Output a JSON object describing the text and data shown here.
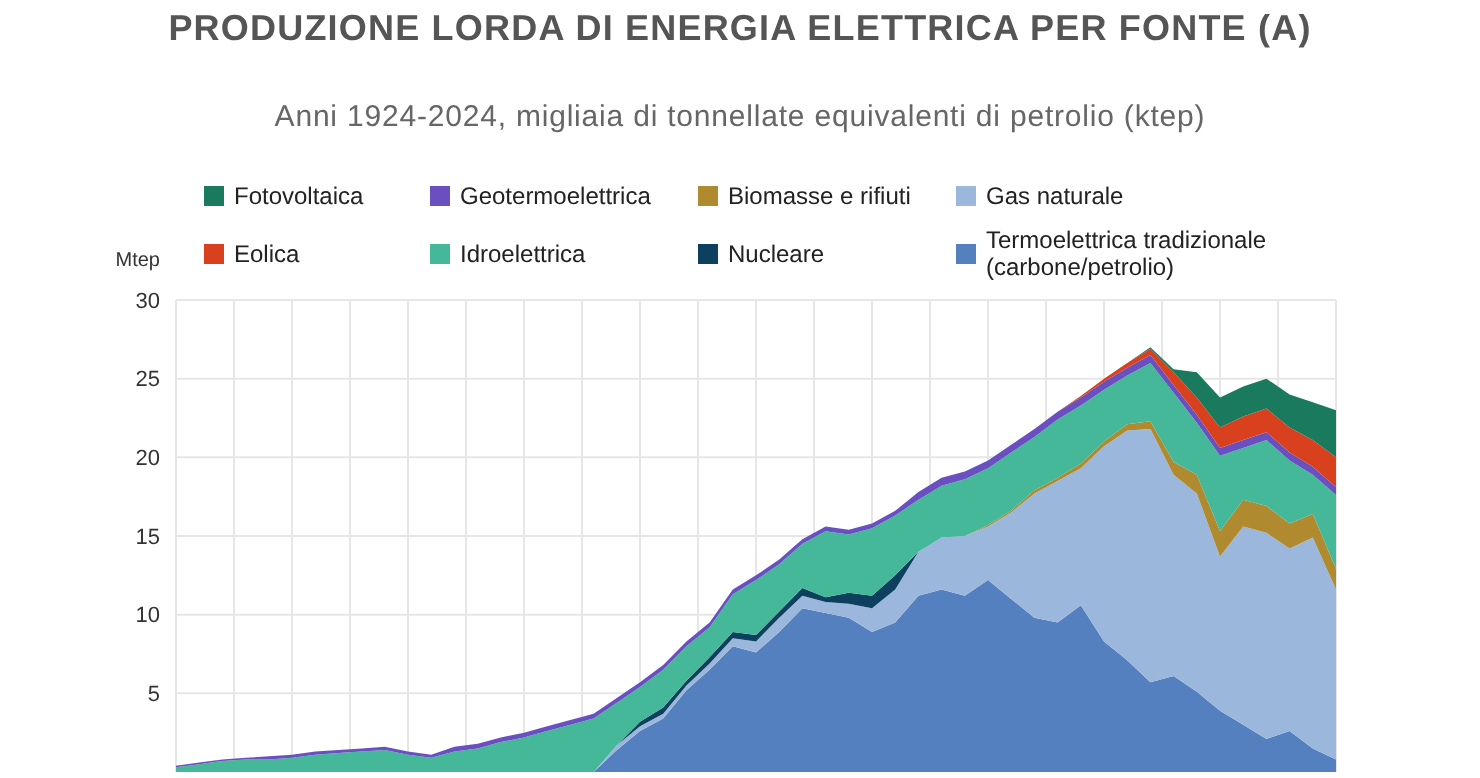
{
  "chart_data": {
    "type": "area",
    "stacked": true,
    "title": "PRODUZIONE LORDA DI ENERGIA ELETTRICA PER FONTE (A)",
    "subtitle": "Anni 1924-2024, migliaia di tonnellate equivalenti di petrolio (ktep)",
    "ylabel": "Mtep",
    "categories": [
      null,
      null,
      null,
      null,
      null,
      null,
      null,
      null,
      null,
      null,
      null,
      null,
      null,
      null,
      null,
      null,
      null,
      null,
      null,
      null,
      null,
      null,
      null,
      null,
      null,
      null,
      null,
      null,
      null,
      null,
      null,
      null,
      null,
      null,
      null,
      null,
      null,
      null,
      null,
      null,
      null,
      null,
      null,
      null,
      null,
      null,
      null,
      null,
      null,
      null,
      null
    ],
    "ylim": [
      0,
      30
    ],
    "yticks": [
      5,
      10,
      15,
      20,
      25,
      30
    ],
    "grid": true,
    "legend": "top",
    "tick_labels": "y",
    "series": [
      {
        "name": "Termoelettrica tradizionale (carbone/petrolio)",
        "color": "#5580c0",
        "values": [
          0,
          0,
          0,
          0,
          0,
          0,
          0,
          0,
          0,
          0,
          0,
          0,
          0,
          0,
          0,
          0,
          0,
          0,
          0,
          1.4,
          2.6,
          3.4,
          5.2,
          6.5,
          8.0,
          7.6,
          8.9,
          10.4,
          10.1,
          9.8,
          8.9,
          9.5,
          11.2,
          11.6,
          11.2,
          12.2,
          11.0,
          9.8,
          9.5,
          10.6,
          8.3,
          7.1,
          5.7,
          6.1,
          5.1,
          3.9,
          3.0,
          2.1,
          2.6,
          1.5,
          0.8
        ]
      },
      {
        "name": "Gas naturale",
        "color": "#9bb8dc",
        "values": [
          0,
          0,
          0,
          0,
          0,
          0,
          0,
          0,
          0,
          0,
          0,
          0,
          0,
          0,
          0,
          0,
          0,
          0,
          0,
          0.3,
          0.3,
          0.3,
          0.3,
          0.4,
          0.5,
          0.7,
          0.9,
          0.8,
          0.7,
          0.9,
          1.5,
          2.1,
          2.8,
          3.3,
          3.8,
          3.4,
          5.5,
          7.9,
          9.0,
          8.7,
          12.4,
          14.6,
          16.1,
          12.8,
          12.6,
          9.8,
          12.6,
          13.1,
          11.6,
          13.4,
          10.8
        ]
      },
      {
        "name": "Nucleare",
        "color": "#0d3f5e",
        "values": [
          null,
          null,
          null,
          null,
          null,
          null,
          null,
          null,
          null,
          null,
          null,
          null,
          null,
          null,
          null,
          null,
          null,
          null,
          null,
          0,
          0.3,
          0.4,
          0.3,
          0.4,
          0.4,
          0.4,
          0.4,
          0.5,
          0.3,
          0.7,
          0.8,
          0.9,
          0,
          null,
          null,
          null,
          null,
          null,
          null,
          null,
          null,
          null,
          null,
          null,
          null,
          null,
          null,
          null,
          null,
          null,
          null
        ]
      },
      {
        "name": "Biomasse e rifiuti",
        "color": "#b08a2e",
        "values": [
          null,
          null,
          null,
          null,
          null,
          null,
          null,
          null,
          null,
          null,
          null,
          null,
          null,
          null,
          null,
          null,
          null,
          null,
          null,
          null,
          null,
          null,
          null,
          null,
          null,
          null,
          null,
          null,
          null,
          null,
          null,
          null,
          null,
          null,
          0,
          0.1,
          0.1,
          0.2,
          0.2,
          0.3,
          0.3,
          0.4,
          0.5,
          0.8,
          1.2,
          1.6,
          1.7,
          1.7,
          1.6,
          1.5,
          1.3
        ]
      },
      {
        "name": "Idroelettrica",
        "color": "#45b89a",
        "values": [
          0.3,
          0.5,
          0.7,
          0.8,
          0.8,
          0.9,
          1.1,
          1.2,
          1.3,
          1.4,
          1.1,
          0.9,
          1.3,
          1.5,
          1.9,
          2.2,
          2.6,
          3.0,
          3.4,
          2.7,
          2.2,
          2.4,
          2.2,
          1.9,
          2.4,
          3.5,
          3.0,
          2.8,
          4.2,
          3.7,
          4.3,
          3.8,
          3.3,
          3.3,
          3.6,
          3.6,
          3.7,
          3.4,
          3.7,
          3.7,
          3.3,
          3.1,
          3.7,
          4.4,
          3.3,
          4.8,
          3.3,
          4.2,
          4.0,
          2.5,
          4.7
        ]
      },
      {
        "name": "Geotermoelettrica",
        "color": "#6a4fc0",
        "values": [
          0.1,
          0.1,
          0.1,
          0.1,
          0.2,
          0.2,
          0.2,
          0.2,
          0.2,
          0.2,
          0.2,
          0.2,
          0.3,
          0.3,
          0.3,
          0.3,
          0.3,
          0.3,
          0.3,
          0.3,
          0.3,
          0.3,
          0.3,
          0.3,
          0.3,
          0.3,
          0.3,
          0.3,
          0.3,
          0.3,
          0.3,
          0.3,
          0.5,
          0.5,
          0.5,
          0.5,
          0.5,
          0.5,
          0.5,
          0.5,
          0.5,
          0.5,
          0.5,
          0.5,
          0.5,
          0.5,
          0.5,
          0.5,
          0.5,
          0.5,
          0.5
        ]
      },
      {
        "name": "Eolica",
        "color": "#d9411e",
        "values": [
          null,
          null,
          null,
          null,
          null,
          null,
          null,
          null,
          null,
          null,
          null,
          null,
          null,
          null,
          null,
          null,
          null,
          null,
          null,
          null,
          null,
          null,
          null,
          null,
          null,
          null,
          null,
          null,
          null,
          null,
          null,
          null,
          null,
          null,
          null,
          null,
          null,
          null,
          0,
          0.1,
          0.2,
          0.3,
          0.4,
          0.8,
          1.1,
          1.3,
          1.5,
          1.5,
          1.6,
          1.7,
          1.9
        ]
      },
      {
        "name": "Fotovoltaica",
        "color": "#1a7a5e",
        "values": [
          null,
          null,
          null,
          null,
          null,
          null,
          null,
          null,
          null,
          null,
          null,
          null,
          null,
          null,
          null,
          null,
          null,
          null,
          null,
          null,
          null,
          null,
          null,
          null,
          null,
          null,
          null,
          null,
          null,
          null,
          null,
          null,
          null,
          null,
          null,
          null,
          null,
          null,
          null,
          null,
          null,
          0,
          0.1,
          0.2,
          1.6,
          1.9,
          1.9,
          1.9,
          2.1,
          2.4,
          3.0
        ]
      }
    ]
  }
}
